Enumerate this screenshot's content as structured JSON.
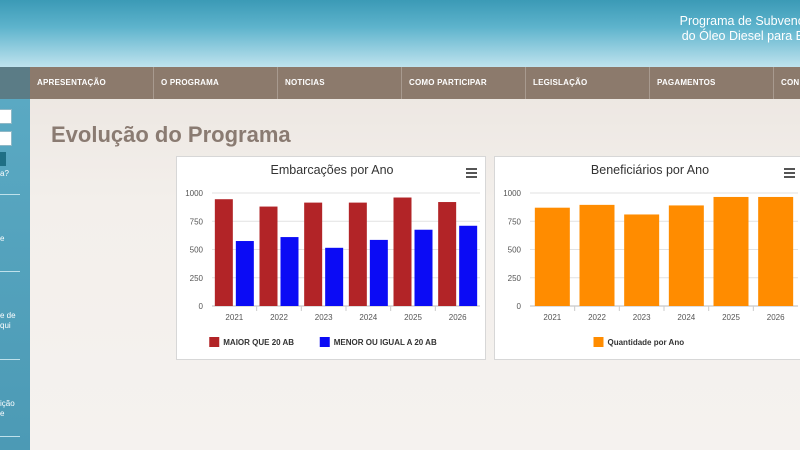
{
  "header": {
    "title_line1": "Programa de Subvenç",
    "title_line2": "do Óleo Diesel para E"
  },
  "nav": {
    "items": [
      "APRESENTAÇÃO",
      "O PROGRAMA",
      "NOTICIAS",
      "COMO PARTICIPAR",
      "LEGISLAÇÃO",
      "PAGAMENTOS",
      "CON"
    ]
  },
  "sidebar": {
    "texts": [
      "a?",
      "e",
      "e de",
      "qui",
      "ição",
      "e"
    ]
  },
  "page": {
    "title": "Evolução do Programa"
  },
  "colors": {
    "maior": "#b22427",
    "menor": "#0b0bf5",
    "beneficiarios": "#ff8c00",
    "header_blue": "#3b9ab6",
    "nav_brown": "#8c7a6c",
    "title_brown": "#8a7b72"
  },
  "icons": {
    "chart_menu": "hamburger-menu-icon"
  },
  "chart_data": [
    {
      "type": "bar",
      "title": "Embarcações por Ano",
      "categories": [
        "2021",
        "2022",
        "2023",
        "2024",
        "2025",
        "2026"
      ],
      "series": [
        {
          "name": "MAIOR QUE 20 AB",
          "values": [
            945,
            880,
            915,
            915,
            960,
            920
          ],
          "color": "#b22427"
        },
        {
          "name": "MENOR OU IGUAL A 20 AB",
          "values": [
            575,
            610,
            515,
            585,
            675,
            710
          ],
          "color": "#0b0bf5"
        }
      ],
      "yticks": [
        "0",
        "250",
        "500",
        "750",
        "1000"
      ],
      "ylim": [
        0,
        1000
      ],
      "legend": "bottom",
      "grid": true
    },
    {
      "type": "bar",
      "title": "Beneficiários por Ano",
      "categories": [
        "2021",
        "2022",
        "2023",
        "2024",
        "2025",
        "2026"
      ],
      "series": [
        {
          "name": "Quantidade por Ano",
          "values": [
            870,
            895,
            810,
            890,
            965,
            965
          ],
          "color": "#ff8c00"
        }
      ],
      "yticks": [
        "0",
        "250",
        "500",
        "750",
        "1000"
      ],
      "ylim": [
        0,
        1000
      ],
      "legend": "bottom",
      "grid": true
    }
  ]
}
